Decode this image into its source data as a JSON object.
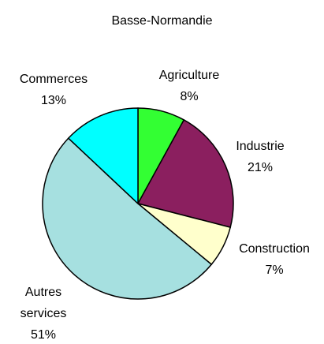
{
  "chart_data": {
    "type": "pie",
    "title": "Basse-Normandie",
    "categories": [
      "Agriculture",
      "Industrie",
      "Construction",
      "Autres services",
      "Commerces"
    ],
    "values": [
      8,
      21,
      7,
      51,
      13
    ],
    "value_labels": [
      "8%",
      "21%",
      "7%",
      "51%",
      "13%"
    ],
    "colors": [
      "#33ff33",
      "#8b1f5f",
      "#ffffcc",
      "#a6e0e0",
      "#00ffff"
    ]
  }
}
